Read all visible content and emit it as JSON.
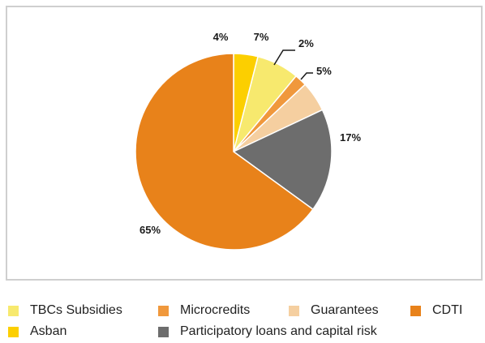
{
  "chart_data": {
    "type": "pie",
    "categories": [
      "Asban",
      "TBCs Subsidies",
      "Microcredits",
      "Guarantees",
      "Participatory loans and capital risk",
      "CDTI"
    ],
    "values": [
      4,
      7,
      2,
      5,
      17,
      65
    ],
    "labels": [
      "4%",
      "7%",
      "2%",
      "5%",
      "17%",
      "65%"
    ],
    "colors": [
      "#fccf00",
      "#f7e96e",
      "#f0983c",
      "#f5cfa0",
      "#6d6d6d",
      "#e8821a"
    ],
    "legend": [
      {
        "name": "TBCs Subsidies",
        "color": "#f7e96e"
      },
      {
        "name": "Microcredits",
        "color": "#f0983c"
      },
      {
        "name": "Guarantees",
        "color": "#f5cfa0"
      },
      {
        "name": "CDTI",
        "color": "#e8821a"
      },
      {
        "name": "Asban",
        "color": "#fccf00"
      },
      {
        "name": "Participatory loans and capital risk",
        "color": "#6d6d6d"
      }
    ],
    "legend_placement": "bottom"
  }
}
